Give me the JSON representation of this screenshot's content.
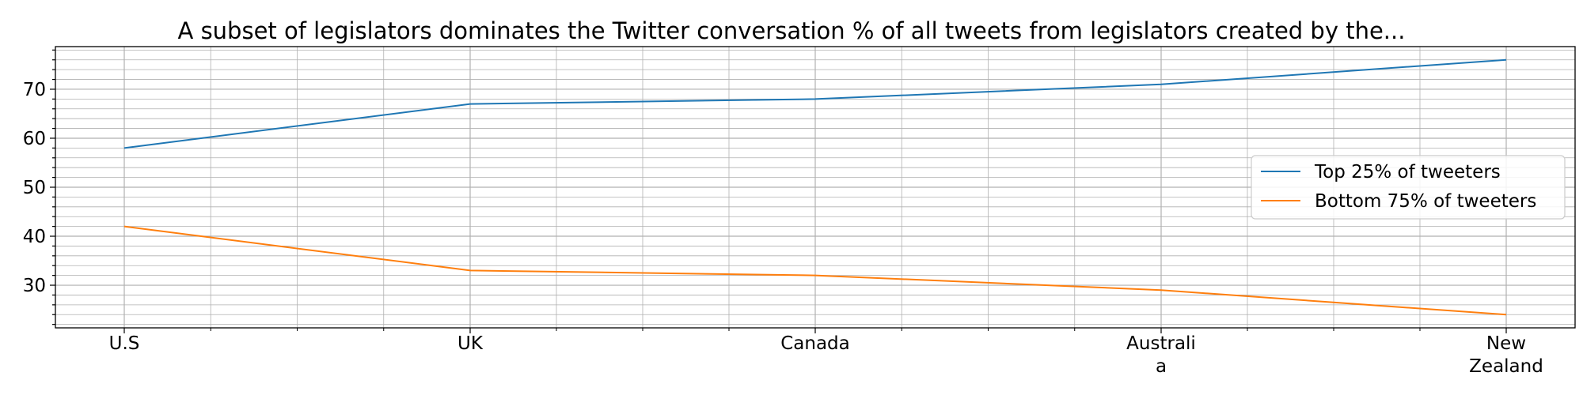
{
  "chart_data": {
    "type": "line",
    "title": "A subset of legislators dominates the Twitter conversation % of all tweets from legislators created by the...",
    "xlabel": "",
    "ylabel": "",
    "categories": [
      "U.S",
      "UK",
      "Canada",
      "Australia",
      "New Zealand"
    ],
    "category_lines": [
      [
        "U.S"
      ],
      [
        "UK"
      ],
      [
        "Canada"
      ],
      [
        "Australi",
        "a"
      ],
      [
        "New",
        "Zealand"
      ]
    ],
    "ylim": [
      21.3,
      78.7
    ],
    "yticks": [
      30,
      40,
      50,
      60,
      70
    ],
    "grid": true,
    "legend_position": "center-right",
    "series": [
      {
        "name": "Top 25% of tweeters",
        "values": [
          58,
          67,
          68,
          71,
          76
        ],
        "color": "#1f77b4"
      },
      {
        "name": "Bottom 75% of tweeters",
        "values": [
          42,
          33,
          32,
          29,
          24
        ],
        "color": "#ff7f0e"
      }
    ]
  }
}
